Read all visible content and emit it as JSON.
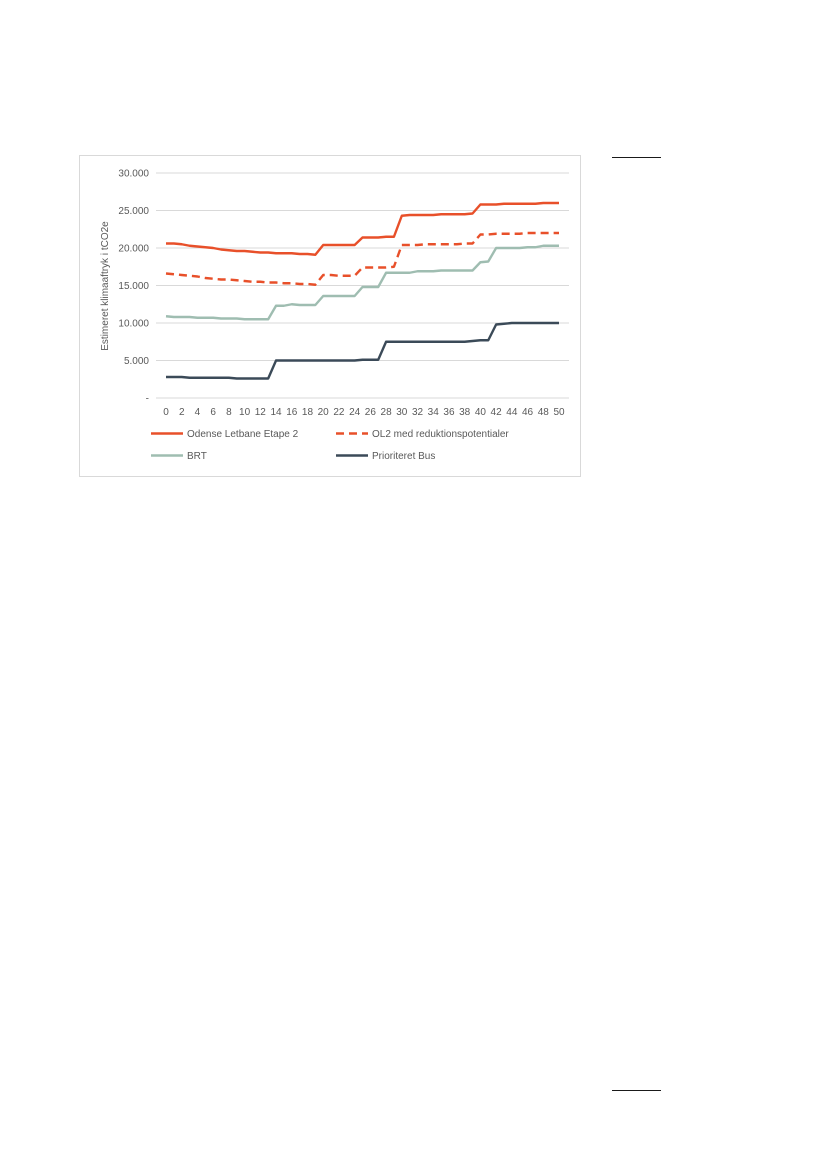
{
  "chart_data": {
    "type": "line",
    "title": "",
    "xlabel": "",
    "ylabel": "Estimeret klimaaftryk i tCO2e",
    "xlim": [
      0,
      50
    ],
    "ylim": [
      0,
      30000
    ],
    "grid": "horizontal",
    "legend_position": "bottom",
    "y_ticks": [
      0,
      5000,
      10000,
      15000,
      20000,
      25000,
      30000
    ],
    "y_tick_labels": [
      "-",
      "5.000",
      "10.000",
      "15.000",
      "20.000",
      "25.000",
      "30.000"
    ],
    "x_ticks": [
      0,
      2,
      4,
      6,
      8,
      10,
      12,
      14,
      16,
      18,
      20,
      22,
      24,
      26,
      28,
      30,
      32,
      34,
      36,
      38,
      40,
      42,
      44,
      46,
      48,
      50
    ],
    "x_tick_labels": [
      "0",
      "2",
      "4",
      "6",
      "8",
      "10",
      "12",
      "14",
      "16",
      "18",
      "20",
      "22",
      "24",
      "26",
      "28",
      "30",
      "32",
      "34",
      "36",
      "38",
      "40",
      "42",
      "44",
      "46",
      "48",
      "50"
    ],
    "x": [
      0,
      1,
      2,
      3,
      4,
      5,
      6,
      7,
      8,
      9,
      10,
      11,
      12,
      13,
      14,
      15,
      16,
      17,
      18,
      19,
      20,
      21,
      22,
      23,
      24,
      25,
      26,
      27,
      28,
      29,
      30,
      31,
      32,
      33,
      34,
      35,
      36,
      37,
      38,
      39,
      40,
      41,
      42,
      43,
      44,
      45,
      46,
      47,
      48,
      49,
      50
    ],
    "series": [
      {
        "name": "Odense Letbane Etape 2",
        "color": "#E8502A",
        "line_style": "solid",
        "values": [
          20600,
          20600,
          20500,
          20300,
          20200,
          20100,
          20000,
          19800,
          19700,
          19600,
          19600,
          19500,
          19400,
          19400,
          19300,
          19300,
          19300,
          19200,
          19200,
          19100,
          20400,
          20400,
          20400,
          20400,
          20400,
          21400,
          21400,
          21400,
          21500,
          21500,
          24300,
          24400,
          24400,
          24400,
          24400,
          24500,
          24500,
          24500,
          24500,
          24600,
          25800,
          25800,
          25800,
          25900,
          25900,
          25900,
          25900,
          25900,
          26000,
          26000,
          26000
        ]
      },
      {
        "name": "OL2 med reduktionspotentialer",
        "color": "#E8502A",
        "line_style": "dashed",
        "values": [
          16600,
          16500,
          16400,
          16300,
          16200,
          16000,
          15900,
          15800,
          15800,
          15700,
          15600,
          15500,
          15500,
          15400,
          15400,
          15300,
          15300,
          15200,
          15200,
          15100,
          16400,
          16400,
          16300,
          16300,
          16300,
          17400,
          17400,
          17400,
          17400,
          17500,
          20400,
          20400,
          20400,
          20500,
          20500,
          20500,
          20500,
          20500,
          20600,
          20600,
          21800,
          21800,
          21900,
          21900,
          21900,
          21900,
          22000,
          22000,
          22000,
          22000,
          22000
        ]
      },
      {
        "name": "BRT",
        "color": "#9FBDB1",
        "line_style": "solid",
        "values": [
          10900,
          10800,
          10800,
          10800,
          10700,
          10700,
          10700,
          10600,
          10600,
          10600,
          10500,
          10500,
          10500,
          10500,
          12300,
          12300,
          12500,
          12400,
          12400,
          12400,
          13600,
          13600,
          13600,
          13600,
          13600,
          14800,
          14800,
          14800,
          16700,
          16700,
          16700,
          16700,
          16900,
          16900,
          16900,
          17000,
          17000,
          17000,
          17000,
          17000,
          18100,
          18200,
          20000,
          20000,
          20000,
          20000,
          20100,
          20100,
          20300,
          20300,
          20300
        ]
      },
      {
        "name": "Prioriteret Bus",
        "color": "#3B4A58",
        "line_style": "solid",
        "values": [
          2800,
          2800,
          2800,
          2700,
          2700,
          2700,
          2700,
          2700,
          2700,
          2600,
          2600,
          2600,
          2600,
          2600,
          5000,
          5000,
          5000,
          5000,
          5000,
          5000,
          5000,
          5000,
          5000,
          5000,
          5000,
          5100,
          5100,
          5100,
          7500,
          7500,
          7500,
          7500,
          7500,
          7500,
          7500,
          7500,
          7500,
          7500,
          7500,
          7600,
          7700,
          7700,
          9800,
          9900,
          10000,
          10000,
          10000,
          10000,
          10000,
          10000,
          10000
        ]
      }
    ]
  },
  "colors": {
    "gridline": "#D9D9D9",
    "text": "#595959",
    "frame": "#D9D9D9"
  }
}
